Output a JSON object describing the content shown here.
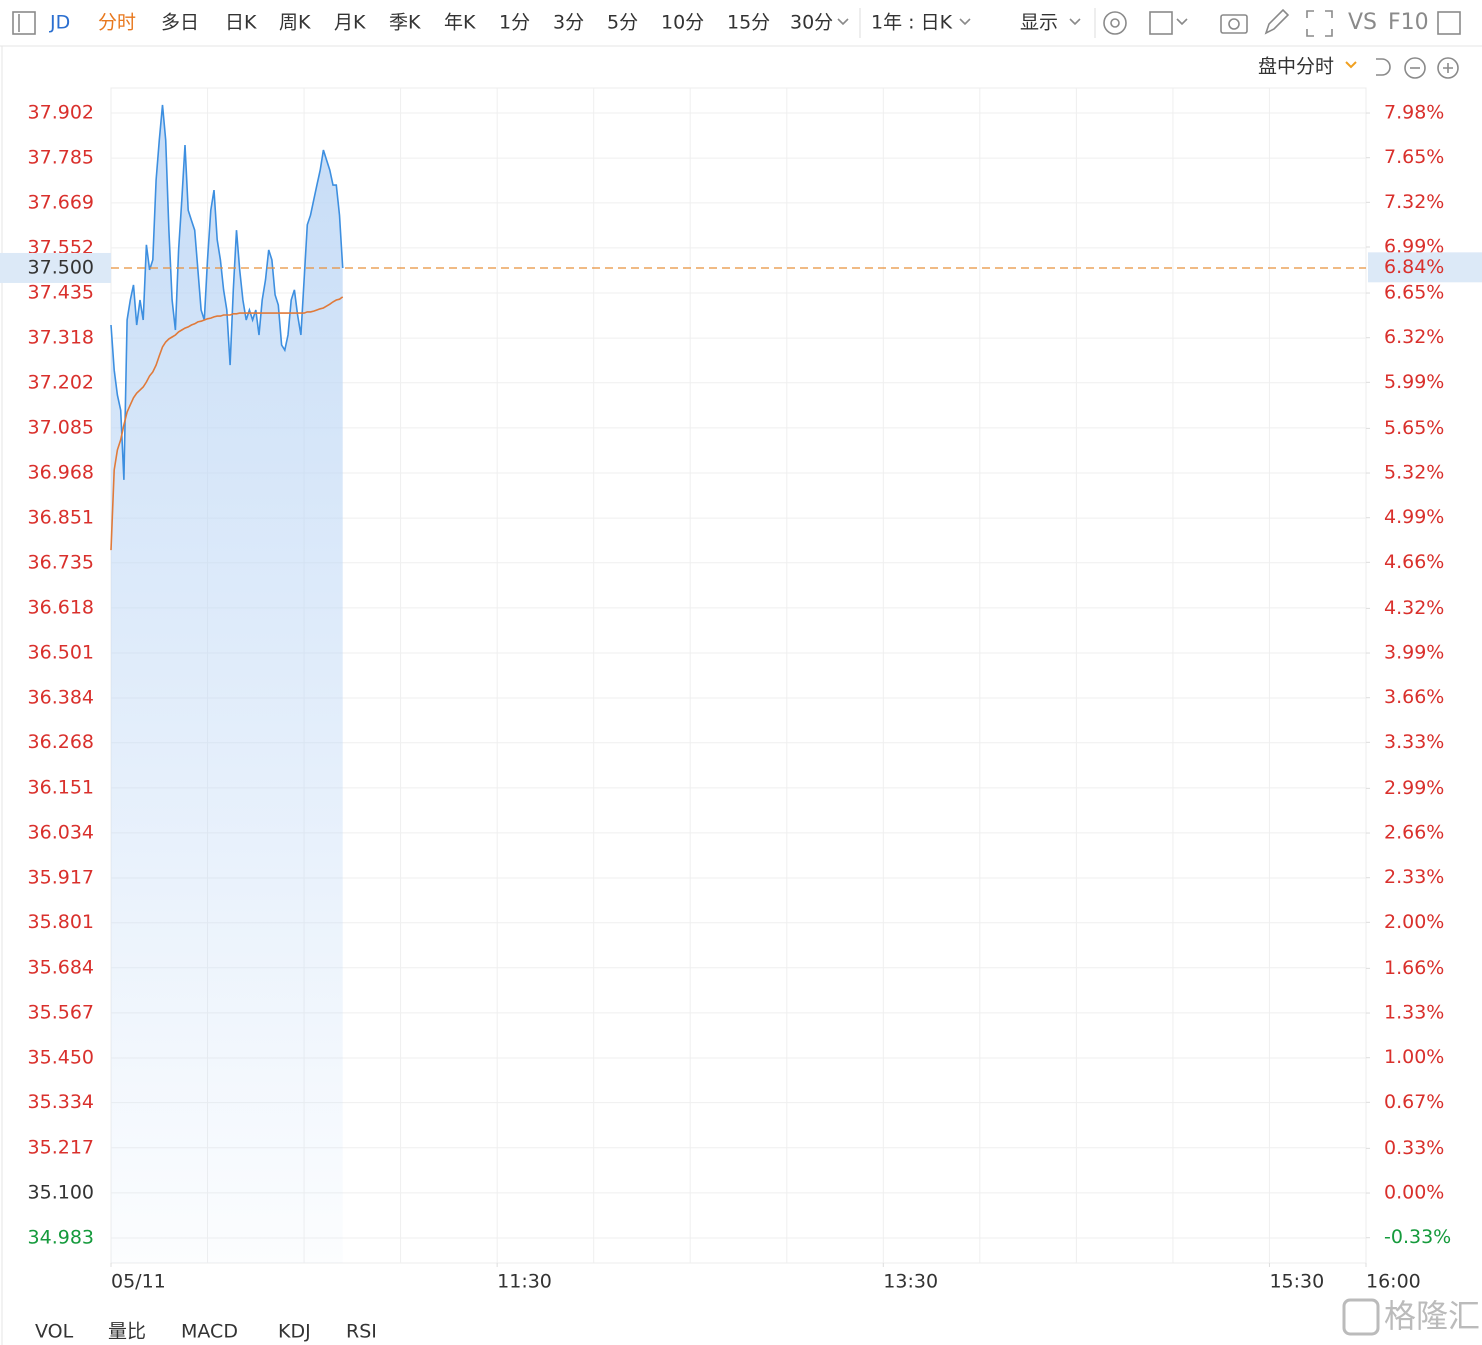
{
  "toolbar": {
    "symbol": "JD",
    "tabs": [
      "分时",
      "多日",
      "日K",
      "周K",
      "月K",
      "季K",
      "年K",
      "1分",
      "3分",
      "5分",
      "10分",
      "15分",
      "30分"
    ],
    "period": "1年 : 日K",
    "display": "显示",
    "vs": "VS",
    "f10": "F10"
  },
  "subbar": {
    "mode": "盘中分时"
  },
  "chart_data": {
    "type": "line",
    "x": [
      "09:30",
      "09:31",
      "09:32",
      "09:33",
      "09:34",
      "09:35",
      "09:36",
      "09:37",
      "09:38",
      "09:39",
      "09:40",
      "09:41",
      "09:42",
      "09:43",
      "09:44",
      "09:45",
      "09:46",
      "09:47",
      "09:48",
      "09:49",
      "09:50",
      "09:51",
      "09:52",
      "09:53",
      "09:54",
      "09:55",
      "09:56",
      "09:57",
      "09:58",
      "09:59",
      "10:00",
      "10:01",
      "10:02",
      "10:03",
      "10:04",
      "10:05",
      "10:06",
      "10:07",
      "10:08",
      "10:09",
      "10:10",
      "10:11",
      "10:12",
      "10:13",
      "10:14",
      "10:15",
      "10:16",
      "10:17",
      "10:18",
      "10:19",
      "10:20",
      "10:21",
      "10:22",
      "10:23",
      "10:24",
      "10:25",
      "10:26",
      "10:27",
      "10:28",
      "10:29",
      "10:30",
      "10:31",
      "10:32",
      "10:33",
      "10:34",
      "10:35",
      "10:36",
      "10:37",
      "10:38",
      "10:39",
      "10:40",
      "10:41",
      "10:42"
    ],
    "series": [
      {
        "color": "#3d8fe0",
        "values": [
          37.352,
          37.235,
          37.17,
          37.131,
          36.95,
          37.365,
          37.417,
          37.456,
          37.352,
          37.417,
          37.365,
          37.56,
          37.495,
          37.521,
          37.728,
          37.832,
          37.923,
          37.832,
          37.598,
          37.417,
          37.339,
          37.547,
          37.676,
          37.819,
          37.65,
          37.624,
          37.598,
          37.495,
          37.391,
          37.365,
          37.521,
          37.65,
          37.702,
          37.573,
          37.521,
          37.443,
          37.391,
          37.248,
          37.443,
          37.598,
          37.495,
          37.417,
          37.365,
          37.391,
          37.365,
          37.391,
          37.326,
          37.417,
          37.469,
          37.547,
          37.521,
          37.43,
          37.404,
          37.3,
          37.287,
          37.326,
          37.417,
          37.443,
          37.378,
          37.326,
          37.469,
          37.612,
          37.637,
          37.676,
          37.715,
          37.754,
          37.806,
          37.78,
          37.754,
          37.715,
          37.715,
          37.637,
          37.5
        ]
      },
      {
        "color": "#e07a3a",
        "values": [
          36.768,
          36.976,
          37.028,
          37.054,
          37.093,
          37.126,
          37.145,
          37.163,
          37.175,
          37.183,
          37.191,
          37.204,
          37.22,
          37.23,
          37.248,
          37.272,
          37.295,
          37.308,
          37.316,
          37.321,
          37.326,
          37.334,
          37.339,
          37.344,
          37.347,
          37.352,
          37.355,
          37.36,
          37.362,
          37.365,
          37.368,
          37.37,
          37.373,
          37.375,
          37.375,
          37.378,
          37.378,
          37.378,
          37.381,
          37.381,
          37.383,
          37.383,
          37.383,
          37.383,
          37.383,
          37.383,
          37.383,
          37.383,
          37.383,
          37.383,
          37.383,
          37.383,
          37.383,
          37.383,
          37.383,
          37.383,
          37.383,
          37.383,
          37.383,
          37.383,
          37.383,
          37.386,
          37.386,
          37.388,
          37.391,
          37.394,
          37.396,
          37.401,
          37.406,
          37.412,
          37.417,
          37.419,
          37.425
        ]
      }
    ],
    "xlim": [
      "09:30",
      "16:00"
    ],
    "xticks": [
      {
        "value": "09:30",
        "label": "05/11"
      },
      "11:30",
      "13:30",
      "15:30",
      "16:00"
    ],
    "ylim": [
      34.918,
      37.967
    ],
    "yticks": [
      37.902,
      37.785,
      37.669,
      37.552,
      37.435,
      37.318,
      37.202,
      37.085,
      36.968,
      36.851,
      36.735,
      36.618,
      36.501,
      36.384,
      36.268,
      36.151,
      36.034,
      35.917,
      35.801,
      35.684,
      35.567,
      {
        "value": 35.45,
        "label": "35.450"
      },
      35.334,
      35.217,
      {
        "value": 35.1,
        "label": "35.100"
      },
      34.983
    ],
    "y2lim": [
      -0.517,
      8.165
    ],
    "y2ticks": [
      {
        "value": 7.98,
        "label": "7.98%"
      },
      {
        "value": 7.65,
        "label": "7.65%"
      },
      {
        "value": 7.32,
        "label": "7.32%"
      },
      {
        "value": 6.99,
        "label": "6.99%"
      },
      {
        "value": 6.65,
        "label": "6.65%"
      },
      {
        "value": 6.32,
        "label": "6.32%"
      },
      {
        "value": 5.99,
        "label": "5.99%"
      },
      {
        "value": 5.65,
        "label": "5.65%"
      },
      {
        "value": 5.32,
        "label": "5.32%"
      },
      {
        "value": 4.99,
        "label": "4.99%"
      },
      {
        "value": 4.66,
        "label": "4.66%"
      },
      {
        "value": 4.32,
        "label": "4.32%"
      },
      {
        "value": 3.99,
        "label": "3.99%"
      },
      {
        "value": 3.66,
        "label": "3.66%"
      },
      {
        "value": 3.33,
        "label": "3.33%"
      },
      {
        "value": 2.99,
        "label": "2.99%"
      },
      {
        "value": 2.66,
        "label": "2.66%"
      },
      {
        "value": 2.33,
        "label": "2.33%"
      },
      {
        "value": 2,
        "label": "2.00%"
      },
      {
        "value": 1.66,
        "label": "1.66%"
      },
      {
        "value": 1.33,
        "label": "1.33%"
      },
      {
        "value": 1,
        "label": "1.00%"
      },
      {
        "value": 0.67,
        "label": "0.67%"
      },
      {
        "value": 0.33,
        "label": "0.33%"
      },
      {
        "value": 0,
        "label": "0.00%"
      },
      {
        "value": -0.33,
        "label": "-0.33%"
      }
    ],
    "last_price": {
      "value": 37.5,
      "label": "37.500",
      "pct": {
        "value": 6.84,
        "label": "6.84%"
      }
    },
    "grid": true
  },
  "indicators": [
    "VOL",
    "量比",
    "MACD",
    "KDJ",
    "RSI"
  ],
  "watermark": "格隆汇"
}
